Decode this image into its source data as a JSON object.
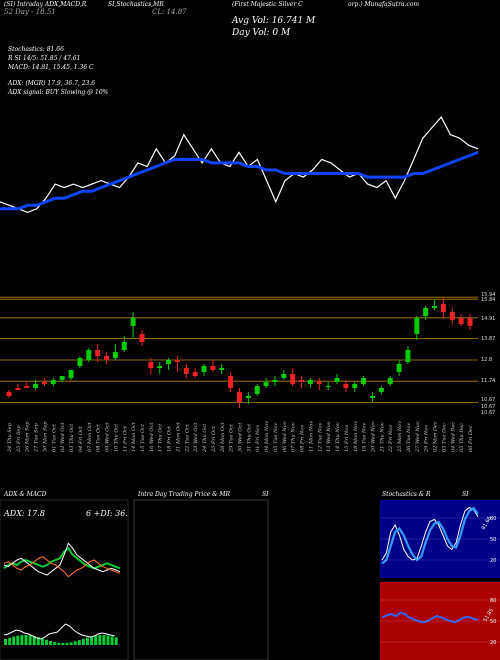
{
  "header": {
    "price_line": "(SI) Intraday ADX,MACD,R",
    "stoch_line": "SI,Stochastics,MR",
    "company": "(First Majestic Silver C",
    "right_tail": "orp.) MunafaSutra.com",
    "high52": "52 Day - 18.51",
    "close_label": "CL: 14.87",
    "avg_vol": "Avg Vol: 16.741 M",
    "day_vol": "Day Vol: 0  M"
  },
  "indicators": {
    "stochastics": "Stochastics: 81.66",
    "si": "R          SI 14/5: 51.85 / 47.61",
    "macd": "MACD: 14.81, 15.45, 1.36  C",
    "adx": "ADX:                    (MGR) 17.9, 36.7, 23.6",
    "adx_signal": "ADX  signal:                   BUY Slowing @ 10%"
  },
  "price_levels": [
    "15.94",
    "15.84",
    "14.91",
    "13.87",
    "12.8",
    "11.74",
    "10.67",
    "10.67",
    "10.67"
  ],
  "dates": [
    "24 Thu Sep",
    "25 Fri Sep",
    "26 Mon Sep",
    "27 Tue Sep",
    "30 Mon Sep",
    "01 Tue Oct",
    "02 Wed Oct",
    "03 Thu Oct",
    "04 Fri Oct",
    "07 Mon Oct",
    "08 Tue Oct",
    "09 Wed Oct",
    "10 Thu Oct",
    "11 Fri Oct",
    "14 Mon Oct",
    "15 Tue Oct",
    "16 Wed Oct",
    "17 Thu Oct",
    "18 Fri Oct",
    "21 Mon Oct",
    "22 Tue Oct",
    "23 Wed Oct",
    "24 Thu Oct",
    "25 Fri Oct",
    "28 Mon Oct",
    "29 Tue Oct",
    "30 Wed Oct",
    "31 Thu Oct",
    "01 Fri Nov",
    "04 Mon Nov",
    "05 Tue Nov",
    "06 Wed Nov",
    "07 Thu Nov",
    "08 Fri Nov",
    "11 Mon Nov",
    "12 Tue Nov",
    "13 Wed Nov",
    "14 Thu Nov",
    "15 Fri Nov",
    "18 Mon Nov",
    "19 Tue Nov",
    "20 Wed Nov",
    "21 Thu Nov",
    "22 Fri Nov",
    "25 Mon Nov",
    "26 Tue Nov",
    "27 Wed Nov",
    "29 Fri Nov",
    "02 Mon Dec",
    "03 Tue Dec",
    "04 Wed Dec",
    "05 Thu Dec",
    "06 Fri Dec"
  ],
  "panels": {
    "adx_title": "ADX  & MACD",
    "adx_value": "ADX: 17.8",
    "adx_right": "6  +DI: 36.",
    "intraday_title": "Intra  Day Trading Price  & MR",
    "intraday_right": "SI",
    "stoch_title": "Stochastics & R",
    "stoch_right": "SI",
    "stoch_ticks": [
      "80",
      "50",
      "20"
    ],
    "rsi_ticks": [
      "80",
      "50",
      "20"
    ],
    "stoch_val": "81.66",
    "rsi_val": "51.85"
  },
  "colors": {
    "up": "#00cc00",
    "down": "#ee2222",
    "ma": "#1144ff",
    "level": "#b8860b",
    "stoch_bg": "#000088",
    "rsi_bg": "#aa0000"
  },
  "chart_data": [
    {
      "type": "line",
      "title": "(First Majestic Silver Corp.) MunafaSutra.com",
      "series": [
        {
          "values": [
            13.4,
            13.3,
            13.2,
            13.1,
            13.2,
            13.5,
            13.9,
            13.8,
            13.9,
            13.8,
            13.9,
            14.0,
            13.9,
            13.8,
            14.1,
            14.5,
            14.4,
            14.9,
            14.5,
            14.7,
            15.3,
            14.9,
            14.5,
            14.9,
            14.5,
            14.4,
            14.8,
            14.4,
            14.6,
            14.0,
            13.4,
            14.0,
            14.2,
            14.1,
            14.3,
            14.6,
            14.5,
            14.3,
            14.1,
            14.2,
            13.9,
            13.8,
            14.0,
            13.5,
            14.0,
            14.6,
            15.2,
            15.5,
            15.8,
            15.3,
            15.2,
            15.0,
            14.9
          ]
        },
        {
          "values": [
            13.2,
            13.2,
            13.2,
            13.3,
            13.3,
            13.4,
            13.5,
            13.5,
            13.6,
            13.7,
            13.7,
            13.8,
            13.9,
            14.0,
            14.1,
            14.2,
            14.3,
            14.4,
            14.5,
            14.6,
            14.6,
            14.6,
            14.6,
            14.5,
            14.5,
            14.5,
            14.5,
            14.4,
            14.4,
            14.3,
            14.3,
            14.2,
            14.2,
            14.2,
            14.2,
            14.2,
            14.2,
            14.2,
            14.2,
            14.2,
            14.1,
            14.1,
            14.1,
            14.1,
            14.1,
            14.2,
            14.2,
            14.3,
            14.4,
            14.5,
            14.6,
            14.7,
            14.8
          ]
        }
      ]
    },
    {
      "type": "candlestick",
      "values": [
        [
          11.2,
          11.3,
          11.0,
          10.9
        ],
        [
          11.4,
          11.6,
          11.3,
          11.3
        ],
        [
          11.5,
          11.7,
          11.4,
          11.4
        ],
        [
          11.4,
          11.8,
          11.6,
          11.3
        ],
        [
          11.7,
          11.9,
          11.6,
          11.5
        ],
        [
          11.6,
          11.9,
          11.8,
          11.5
        ],
        [
          11.8,
          12.0,
          12.0,
          11.7
        ],
        [
          11.9,
          12.3,
          12.3,
          11.8
        ],
        [
          12.5,
          13.0,
          12.9,
          12.4
        ],
        [
          12.8,
          13.4,
          13.3,
          12.7
        ],
        [
          13.3,
          13.6,
          13.0,
          12.7
        ],
        [
          13.0,
          13.2,
          12.8,
          12.6
        ],
        [
          12.9,
          13.6,
          13.2,
          12.8
        ],
        [
          13.3,
          14.0,
          13.7,
          13.2
        ],
        [
          14.5,
          15.2,
          14.9,
          13.9
        ],
        [
          14.1,
          14.3,
          13.7,
          13.5
        ],
        [
          12.7,
          12.9,
          12.4,
          12.1
        ],
        [
          12.4,
          12.7,
          12.5,
          12.1
        ],
        [
          12.6,
          12.9,
          12.8,
          12.3
        ],
        [
          12.8,
          13.0,
          12.7,
          12.2
        ],
        [
          12.4,
          12.6,
          12.1,
          11.9
        ],
        [
          12.2,
          12.4,
          12.0,
          11.9
        ],
        [
          12.2,
          12.6,
          12.5,
          12.0
        ],
        [
          12.5,
          12.8,
          12.3,
          12.2
        ],
        [
          12.3,
          12.6,
          12.4,
          12.1
        ],
        [
          12.0,
          12.2,
          11.4,
          11.2
        ],
        [
          11.2,
          11.4,
          10.7,
          10.4
        ],
        [
          10.9,
          11.2,
          11.0,
          10.6
        ],
        [
          11.1,
          11.6,
          11.5,
          11.0
        ],
        [
          11.5,
          11.9,
          11.7,
          11.4
        ],
        [
          11.7,
          12.0,
          11.8,
          11.5
        ],
        [
          11.9,
          12.3,
          12.1,
          11.8
        ],
        [
          12.1,
          12.4,
          11.6,
          11.5
        ],
        [
          11.8,
          12.0,
          11.7,
          11.4
        ],
        [
          11.6,
          11.9,
          11.8,
          11.4
        ],
        [
          11.7,
          11.9,
          11.6,
          11.3
        ],
        [
          11.5,
          11.7,
          11.5,
          11.3
        ],
        [
          11.7,
          12.1,
          11.9,
          11.6
        ],
        [
          11.6,
          11.8,
          11.4,
          11.2
        ],
        [
          11.4,
          11.7,
          11.6,
          11.2
        ],
        [
          11.6,
          12.0,
          11.9,
          11.5
        ],
        [
          10.9,
          11.2,
          11.0,
          10.7
        ],
        [
          11.2,
          11.5,
          11.4,
          11.1
        ],
        [
          11.6,
          12.0,
          11.9,
          11.5
        ],
        [
          12.2,
          12.8,
          12.6,
          12.0
        ],
        [
          12.7,
          13.5,
          13.3,
          12.6
        ],
        [
          14.1,
          15.0,
          14.9,
          13.8
        ],
        [
          15.0,
          15.5,
          15.4,
          14.8
        ],
        [
          15.4,
          15.8,
          15.5,
          15.3
        ],
        [
          15.6,
          15.9,
          15.2,
          14.9
        ],
        [
          15.2,
          15.4,
          14.8,
          14.6
        ],
        [
          14.9,
          15.1,
          14.6,
          14.5
        ],
        [
          14.9,
          15.1,
          14.5,
          14.3
        ]
      ]
    },
    {
      "type": "line",
      "title": "ADX  & MACD",
      "series": [
        {
          "values": [
            20,
            22,
            23,
            22,
            24,
            25,
            24,
            23,
            22,
            21,
            22,
            24,
            25,
            26,
            30,
            32,
            28,
            26,
            24,
            22,
            21,
            20,
            21,
            22,
            23,
            22,
            21,
            20
          ]
        },
        {
          "values": [
            22,
            21,
            23,
            25,
            26,
            24,
            22,
            20,
            18,
            17,
            16,
            18,
            20,
            22,
            28,
            35,
            32,
            28,
            26,
            24,
            22,
            20,
            19,
            18,
            19,
            20,
            19,
            18
          ]
        },
        {
          "values": [
            23,
            24,
            22,
            20,
            19,
            21,
            22,
            24,
            26,
            27,
            25,
            23,
            22,
            20,
            18,
            15,
            17,
            19,
            20,
            22,
            24,
            25,
            23,
            21,
            20,
            19,
            18,
            17
          ]
        }
      ]
    },
    {
      "type": "line",
      "title": "Stochastics & R",
      "series": [
        {
          "values": [
            20,
            30,
            60,
            70,
            55,
            35,
            25,
            20,
            22,
            40,
            60,
            75,
            78,
            70,
            55,
            40,
            35,
            45,
            70,
            90,
            95,
            92,
            81.66
          ]
        },
        {
          "values": [
            15,
            20,
            40,
            60,
            65,
            55,
            40,
            28,
            20,
            25,
            45,
            62,
            72,
            74,
            65,
            50,
            40,
            38,
            55,
            78,
            90,
            94,
            86
          ]
        }
      ]
    },
    {
      "type": "line",
      "title": "RSI",
      "series": [
        {
          "values": [
            55,
            58,
            60,
            57,
            62,
            60,
            55,
            52,
            50,
            48,
            50,
            54,
            57,
            55,
            52,
            50,
            48,
            52,
            55,
            56,
            53,
            51.85
          ]
        }
      ]
    }
  ]
}
